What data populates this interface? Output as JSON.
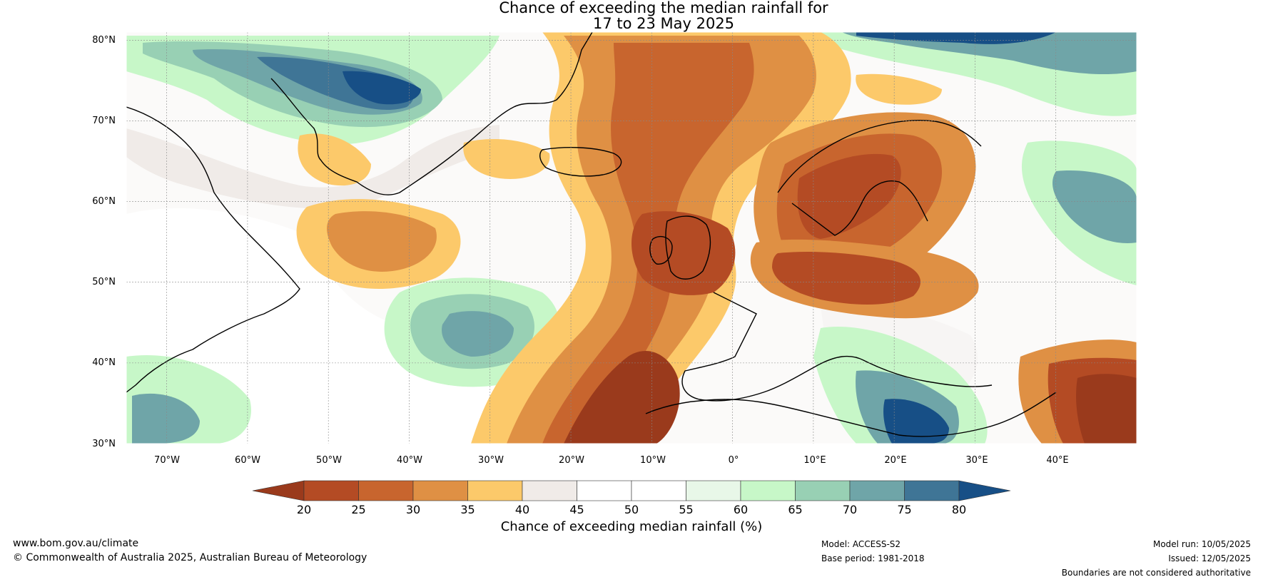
{
  "title": {
    "line1": "Chance of exceeding the median rainfall for",
    "line2": "17 to 23 May 2025"
  },
  "map": {
    "lat_labels": [
      "80°N",
      "70°N",
      "60°N",
      "50°N",
      "40°N",
      "30°N"
    ],
    "lon_labels": [
      "70°W",
      "60°W",
      "50°W",
      "40°W",
      "30°W",
      "20°W",
      "10°W",
      "0°",
      "10°E",
      "20°E",
      "30°E",
      "40°E"
    ],
    "lat_range": [
      30,
      81
    ],
    "lon_range": [
      -75,
      50
    ]
  },
  "colorbar": {
    "label": "Chance of exceeding median rainfall (%)",
    "ticks": [
      "20",
      "25",
      "30",
      "35",
      "40",
      "45",
      "50",
      "55",
      "60",
      "65",
      "70",
      "75",
      "80"
    ],
    "colors": [
      "#9a3a1c",
      "#b44b24",
      "#c8652e",
      "#df9044",
      "#fcc96a",
      "#f0ebe8",
      "#ffffff",
      "#ffffff",
      "#e8f7e8",
      "#c7f7c8",
      "#98d0b4",
      "#6fa5a8",
      "#3f7596",
      "#174f86"
    ]
  },
  "footer": {
    "website": "www.bom.gov.au/climate",
    "copyright": "© Commonwealth of Australia 2025, Australian Bureau of Meteorology",
    "model": "Model: ACCESS-S2",
    "base_period": "Base period: 1981-2018",
    "model_run": "Model run: 10/05/2025",
    "issued": "Issued: 12/05/2025",
    "disclaimer": "Boundaries are not considered authoritative"
  }
}
